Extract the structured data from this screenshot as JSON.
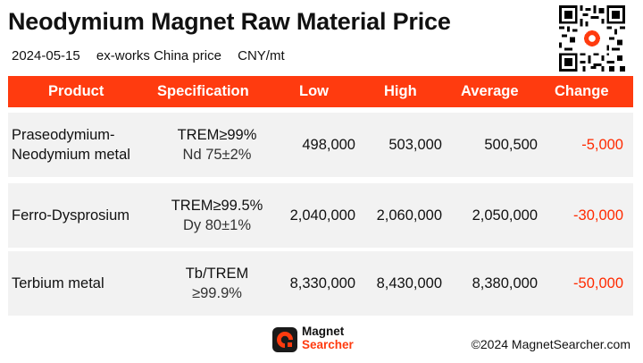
{
  "title": "Neodymium Magnet Raw Material Price",
  "subtitle": {
    "date": "2024-05-15",
    "basis": "ex-works China price",
    "unit": "CNY/mt"
  },
  "table": {
    "headers": [
      "Product",
      "Specification",
      "Low",
      "High",
      "Average",
      "Change"
    ],
    "rows": [
      {
        "product": [
          "Praseodymium-",
          "Neodymium metal"
        ],
        "spec": [
          "TREM≥99%",
          "Nd 75±2%"
        ],
        "low": "498,000",
        "high": "503,000",
        "average": "500,500",
        "change": "-5,000"
      },
      {
        "product": [
          "Ferro-Dysprosium"
        ],
        "spec": [
          "TREM≥99.5%",
          "Dy 80±1%"
        ],
        "low": "2,040,000",
        "high": "2,060,000",
        "average": "2,050,000",
        "change": "-30,000"
      },
      {
        "product": [
          "Terbium metal"
        ],
        "spec": [
          "Tb/TREM",
          "≥99.9%"
        ],
        "low": "8,330,000",
        "high": "8,430,000",
        "average": "8,380,000",
        "change": "-50,000"
      }
    ]
  },
  "footer": {
    "brand_line1": "Magnet",
    "brand_line2": "Searcher",
    "copyright": "©2024 MagnetSearcher.com"
  },
  "colors": {
    "header_bg": "#ff3b0f",
    "row_bg": "#f2f2f2",
    "negative": "#ff2a00"
  },
  "icons": {
    "qr": "qr-code-icon",
    "logo": "magnet-searcher-logo"
  }
}
